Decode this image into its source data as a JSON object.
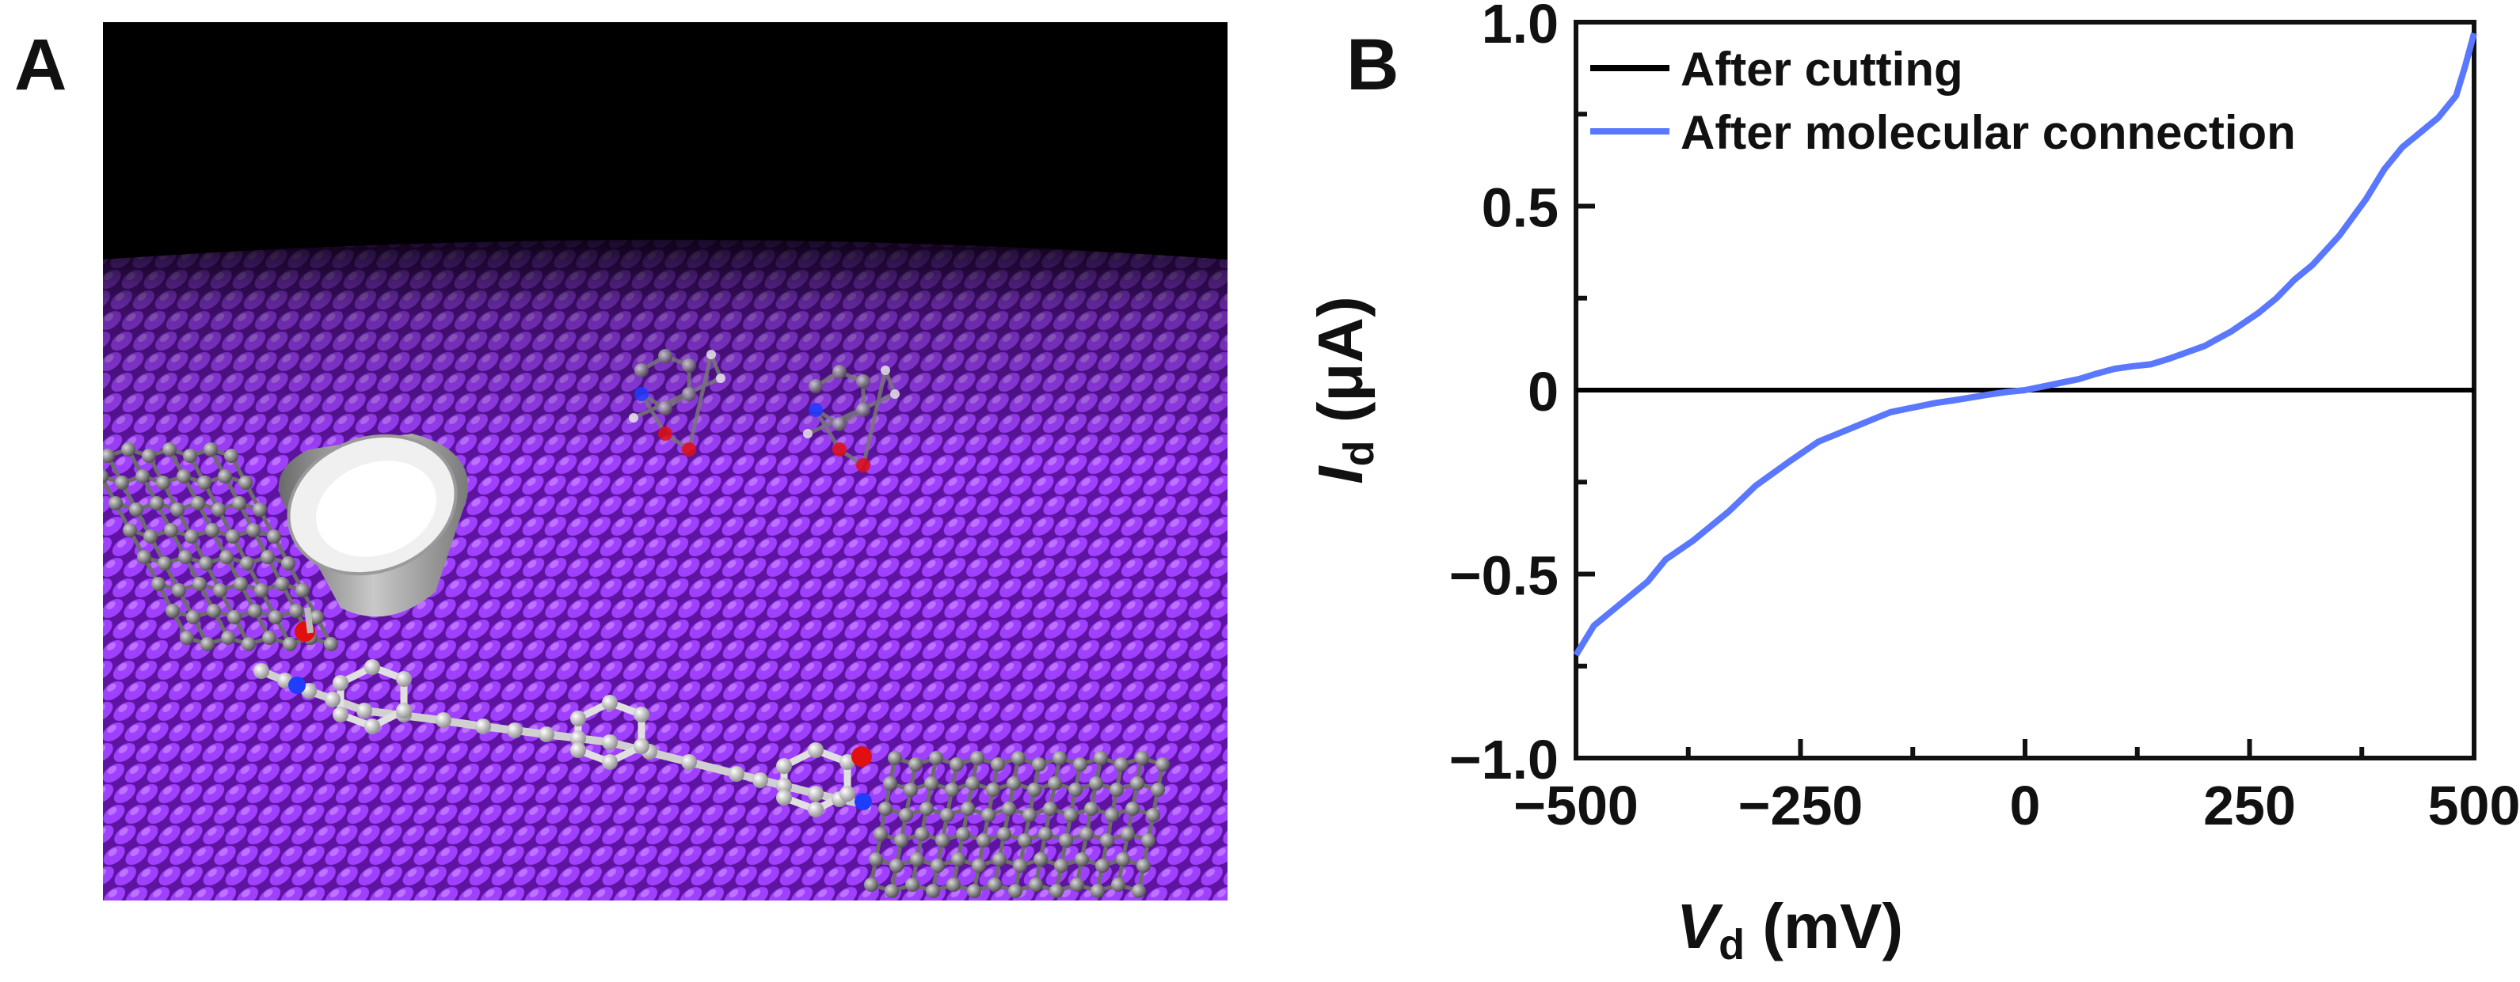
{
  "panels": {
    "a_label": "A",
    "b_label": "B"
  },
  "colors": {
    "substrate": "#7a1fc4",
    "substrate_dark": "#3d0a66",
    "background_top": "#000000",
    "graphene_atom": "#8d8d8d",
    "chain_atom": "#e6e6e6",
    "nitrogen": "#1f3cff",
    "oxygen": "#e01010",
    "curve_after_cut": "#000000",
    "curve_after_connect": "#5a78ff"
  },
  "chart_data": {
    "type": "line",
    "xlabel_var": "V",
    "xlabel_sub": "d",
    "xlabel_unit": " (mV)",
    "ylabel_var": "I",
    "ylabel_sub": "d",
    "ylabel_unit": " (μA)",
    "xlim": [
      -500,
      500
    ],
    "ylim": [
      -1.0,
      1.0
    ],
    "xticks": [
      -500,
      -250,
      0,
      250,
      500
    ],
    "xtick_labels": [
      "−500",
      "−250",
      "0",
      "250",
      "500"
    ],
    "yticks": [
      -1.0,
      -0.5,
      0,
      0.5,
      1.0
    ],
    "ytick_labels": [
      "−1.0",
      "−0.5",
      "0",
      "0.5",
      "1.0"
    ],
    "legend_position": "top-left",
    "grid": false,
    "series": [
      {
        "name": "After cutting",
        "color": "#000000",
        "x": [
          -500,
          500
        ],
        "y": [
          0,
          0
        ]
      },
      {
        "name": "After molecular connection",
        "color": "#5a78ff",
        "x": [
          -500,
          -480,
          -450,
          -420,
          -400,
          -370,
          -330,
          -300,
          -260,
          -230,
          -210,
          -190,
          -170,
          -150,
          -120,
          -100,
          -80,
          -60,
          -40,
          -20,
          0,
          20,
          40,
          60,
          80,
          100,
          120,
          140,
          160,
          200,
          230,
          260,
          280,
          300,
          320,
          350,
          380,
          400,
          420,
          440,
          460,
          480,
          490,
          500
        ],
        "y": [
          -0.72,
          -0.64,
          -0.58,
          -0.52,
          -0.46,
          -0.41,
          -0.33,
          -0.26,
          -0.19,
          -0.14,
          -0.12,
          -0.1,
          -0.08,
          -0.06,
          -0.045,
          -0.035,
          -0.028,
          -0.02,
          -0.012,
          -0.005,
          0.0,
          0.01,
          0.02,
          0.03,
          0.045,
          0.058,
          0.065,
          0.07,
          0.085,
          0.12,
          0.16,
          0.21,
          0.25,
          0.3,
          0.34,
          0.42,
          0.52,
          0.6,
          0.66,
          0.7,
          0.74,
          0.8,
          0.88,
          0.97
        ]
      }
    ]
  }
}
